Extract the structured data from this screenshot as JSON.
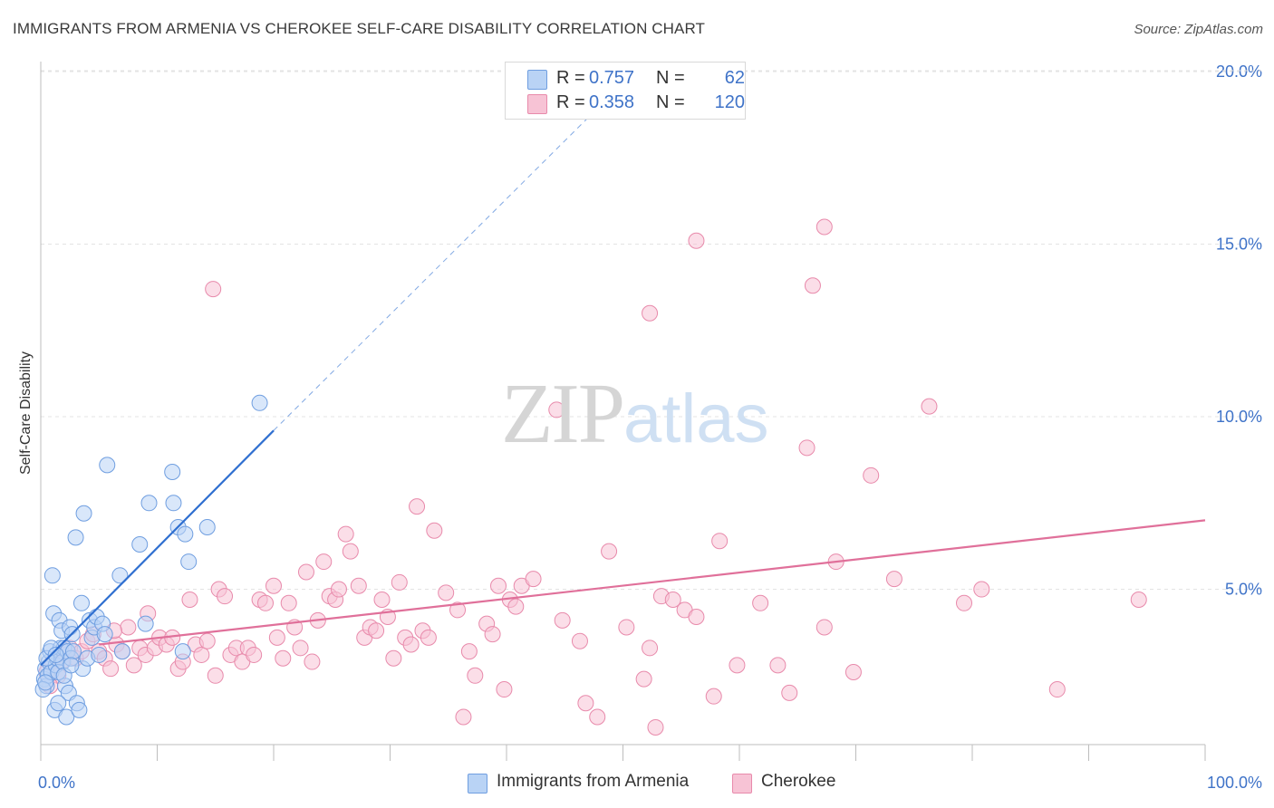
{
  "title": "IMMIGRANTS FROM ARMENIA VS CHEROKEE SELF-CARE DISABILITY CORRELATION CHART",
  "source": "Source: ZipAtlas.com",
  "watermark": {
    "zip": "ZIP",
    "atlas": "atlas"
  },
  "legend": {
    "rows": [
      {
        "r_label": "R =",
        "r_value": "0.757",
        "n_label": "N =",
        "n_value": "62"
      },
      {
        "r_label": "R =",
        "r_value": "0.358",
        "n_label": "N =",
        "n_value": "120"
      }
    ]
  },
  "bottom_legend": [
    "Immigrants from Armenia",
    "Cherokee"
  ],
  "colors": {
    "armenia_fill": "#b9d3f5",
    "armenia_stroke": "#6f9ee0",
    "armenia_line": "#2f6fd0",
    "cherokee_fill": "#f7c3d5",
    "cherokee_stroke": "#e88aab",
    "cherokee_line": "#e0709a",
    "tick_text": "#3f73c8",
    "grid": "#e3e3e3"
  },
  "chart_data": {
    "type": "scatter",
    "title": "IMMIGRANTS FROM ARMENIA VS CHEROKEE SELF-CARE DISABILITY CORRELATION CHART",
    "xlabel": "",
    "ylabel": "Self-Care Disability",
    "xlim": [
      0,
      100
    ],
    "ylim": [
      0.5,
      20.5
    ],
    "x_tick_labels": [
      "0.0%",
      "100.0%"
    ],
    "y_ticks": [
      5,
      10,
      15,
      20
    ],
    "y_tick_labels": [
      "5.0%",
      "10.0%",
      "15.0%",
      "20.0%"
    ],
    "grid": true,
    "legend_position": "top-center",
    "series": [
      {
        "name": "Immigrants from Armenia",
        "R": 0.757,
        "N": 62,
        "trend": {
          "x": [
            0,
            20
          ],
          "y": [
            2.8,
            9.6
          ],
          "extension_x": [
            20,
            48
          ],
          "extension_y": [
            9.6,
            19.0
          ]
        },
        "points": [
          [
            0.3,
            2.4
          ],
          [
            0.4,
            2.7
          ],
          [
            0.5,
            2.2
          ],
          [
            0.6,
            2.5
          ],
          [
            0.7,
            2.9
          ],
          [
            0.8,
            3.2
          ],
          [
            0.9,
            2.6
          ],
          [
            1.0,
            5.4
          ],
          [
            1.1,
            4.3
          ],
          [
            1.2,
            1.5
          ],
          [
            1.3,
            2.8
          ],
          [
            1.4,
            3.0
          ],
          [
            1.5,
            2.6
          ],
          [
            1.6,
            4.1
          ],
          [
            1.7,
            3.3
          ],
          [
            1.8,
            3.8
          ],
          [
            1.9,
            2.9
          ],
          [
            2.0,
            3.3
          ],
          [
            2.1,
            2.2
          ],
          [
            2.2,
            1.3
          ],
          [
            2.3,
            3.2
          ],
          [
            2.4,
            2.0
          ],
          [
            2.5,
            3.9
          ],
          [
            2.6,
            3.0
          ],
          [
            2.7,
            3.7
          ],
          [
            2.8,
            3.2
          ],
          [
            3.0,
            6.5
          ],
          [
            3.1,
            1.7
          ],
          [
            3.3,
            1.5
          ],
          [
            3.5,
            4.6
          ],
          [
            3.6,
            2.7
          ],
          [
            3.7,
            7.2
          ],
          [
            4.0,
            3.0
          ],
          [
            4.2,
            4.1
          ],
          [
            4.4,
            3.6
          ],
          [
            4.6,
            3.9
          ],
          [
            4.8,
            4.2
          ],
          [
            5.0,
            3.1
          ],
          [
            5.3,
            4.0
          ],
          [
            5.5,
            3.7
          ],
          [
            5.7,
            8.6
          ],
          [
            6.8,
            5.4
          ],
          [
            7.0,
            3.2
          ],
          [
            8.5,
            6.3
          ],
          [
            9.0,
            4.0
          ],
          [
            9.3,
            7.5
          ],
          [
            11.3,
            8.4
          ],
          [
            11.4,
            7.5
          ],
          [
            11.8,
            6.8
          ],
          [
            12.2,
            3.2
          ],
          [
            12.4,
            6.6
          ],
          [
            12.7,
            5.8
          ],
          [
            14.3,
            6.8
          ],
          [
            18.8,
            10.4
          ],
          [
            0.2,
            2.1
          ],
          [
            0.5,
            3.0
          ],
          [
            0.9,
            3.3
          ],
          [
            1.5,
            1.7
          ],
          [
            2.0,
            2.5
          ],
          [
            0.4,
            2.3
          ],
          [
            1.3,
            3.1
          ],
          [
            2.6,
            2.8
          ]
        ]
      },
      {
        "name": "Cherokee",
        "R": 0.358,
        "N": 120,
        "trend": {
          "x": [
            5,
            100
          ],
          "y": [
            3.4,
            7.0
          ]
        },
        "points": [
          [
            0.5,
            2.6
          ],
          [
            1.0,
            2.9
          ],
          [
            1.5,
            2.5
          ],
          [
            2.0,
            3.1
          ],
          [
            2.5,
            3.3
          ],
          [
            3.0,
            3.0
          ],
          [
            3.5,
            3.2
          ],
          [
            4.0,
            3.5
          ],
          [
            4.5,
            3.7
          ],
          [
            5.0,
            3.2
          ],
          [
            5.5,
            3.0
          ],
          [
            6.0,
            2.7
          ],
          [
            6.5,
            3.4
          ],
          [
            7.0,
            3.2
          ],
          [
            7.5,
            3.9
          ],
          [
            8.0,
            2.8
          ],
          [
            8.5,
            3.3
          ],
          [
            9.0,
            3.1
          ],
          [
            9.2,
            4.3
          ],
          [
            9.8,
            3.3
          ],
          [
            10.2,
            3.6
          ],
          [
            10.8,
            3.4
          ],
          [
            11.3,
            3.6
          ],
          [
            11.8,
            2.7
          ],
          [
            12.2,
            2.9
          ],
          [
            12.8,
            4.7
          ],
          [
            13.3,
            3.4
          ],
          [
            13.8,
            3.1
          ],
          [
            14.3,
            3.5
          ],
          [
            15.0,
            2.5
          ],
          [
            15.3,
            5.0
          ],
          [
            15.8,
            4.8
          ],
          [
            16.3,
            3.1
          ],
          [
            16.8,
            3.3
          ],
          [
            17.3,
            2.9
          ],
          [
            17.8,
            3.3
          ],
          [
            18.3,
            3.1
          ],
          [
            18.8,
            4.7
          ],
          [
            19.3,
            4.6
          ],
          [
            20.0,
            5.1
          ],
          [
            20.3,
            3.6
          ],
          [
            20.8,
            3.0
          ],
          [
            21.3,
            4.6
          ],
          [
            21.8,
            3.9
          ],
          [
            22.3,
            3.3
          ],
          [
            22.8,
            5.5
          ],
          [
            23.3,
            2.9
          ],
          [
            23.8,
            4.1
          ],
          [
            24.3,
            5.8
          ],
          [
            24.8,
            4.8
          ],
          [
            25.3,
            4.7
          ],
          [
            25.6,
            5.0
          ],
          [
            26.2,
            6.6
          ],
          [
            26.6,
            6.1
          ],
          [
            27.3,
            5.1
          ],
          [
            27.8,
            3.6
          ],
          [
            28.3,
            3.9
          ],
          [
            28.8,
            3.8
          ],
          [
            29.3,
            4.7
          ],
          [
            29.8,
            4.2
          ],
          [
            30.3,
            3.0
          ],
          [
            30.8,
            5.2
          ],
          [
            31.3,
            3.6
          ],
          [
            31.8,
            3.4
          ],
          [
            32.3,
            7.4
          ],
          [
            32.8,
            3.8
          ],
          [
            33.3,
            3.6
          ],
          [
            33.8,
            6.7
          ],
          [
            34.8,
            4.9
          ],
          [
            35.8,
            4.4
          ],
          [
            36.3,
            1.3
          ],
          [
            36.8,
            3.2
          ],
          [
            37.3,
            2.5
          ],
          [
            38.3,
            4.0
          ],
          [
            38.8,
            3.7
          ],
          [
            39.3,
            5.1
          ],
          [
            39.8,
            2.1
          ],
          [
            40.3,
            4.7
          ],
          [
            40.8,
            4.5
          ],
          [
            41.3,
            5.1
          ],
          [
            42.3,
            5.3
          ],
          [
            44.8,
            4.1
          ],
          [
            46.3,
            3.5
          ],
          [
            46.8,
            1.7
          ],
          [
            48.8,
            6.1
          ],
          [
            50.3,
            3.9
          ],
          [
            51.8,
            2.4
          ],
          [
            52.3,
            3.3
          ],
          [
            53.3,
            4.8
          ],
          [
            54.3,
            4.7
          ],
          [
            55.3,
            4.4
          ],
          [
            56.3,
            4.2
          ],
          [
            57.8,
            1.9
          ],
          [
            58.3,
            6.4
          ],
          [
            59.8,
            2.8
          ],
          [
            61.8,
            4.6
          ],
          [
            63.3,
            2.8
          ],
          [
            64.3,
            2.0
          ],
          [
            65.8,
            9.1
          ],
          [
            67.3,
            3.9
          ],
          [
            68.3,
            5.8
          ],
          [
            69.8,
            2.6
          ],
          [
            71.3,
            8.3
          ],
          [
            73.3,
            5.3
          ],
          [
            79.3,
            4.6
          ],
          [
            80.8,
            5.0
          ],
          [
            87.3,
            2.1
          ],
          [
            94.3,
            4.7
          ],
          [
            14.8,
            13.7
          ],
          [
            47.8,
            1.3
          ],
          [
            52.3,
            13.0
          ],
          [
            52.8,
            1.0
          ],
          [
            56.3,
            15.1
          ],
          [
            66.3,
            13.8
          ],
          [
            67.3,
            15.5
          ],
          [
            76.3,
            10.3
          ],
          [
            44.3,
            10.2
          ],
          [
            0.8,
            2.2
          ],
          [
            1.8,
            2.9
          ],
          [
            6.3,
            3.8
          ]
        ]
      }
    ]
  }
}
